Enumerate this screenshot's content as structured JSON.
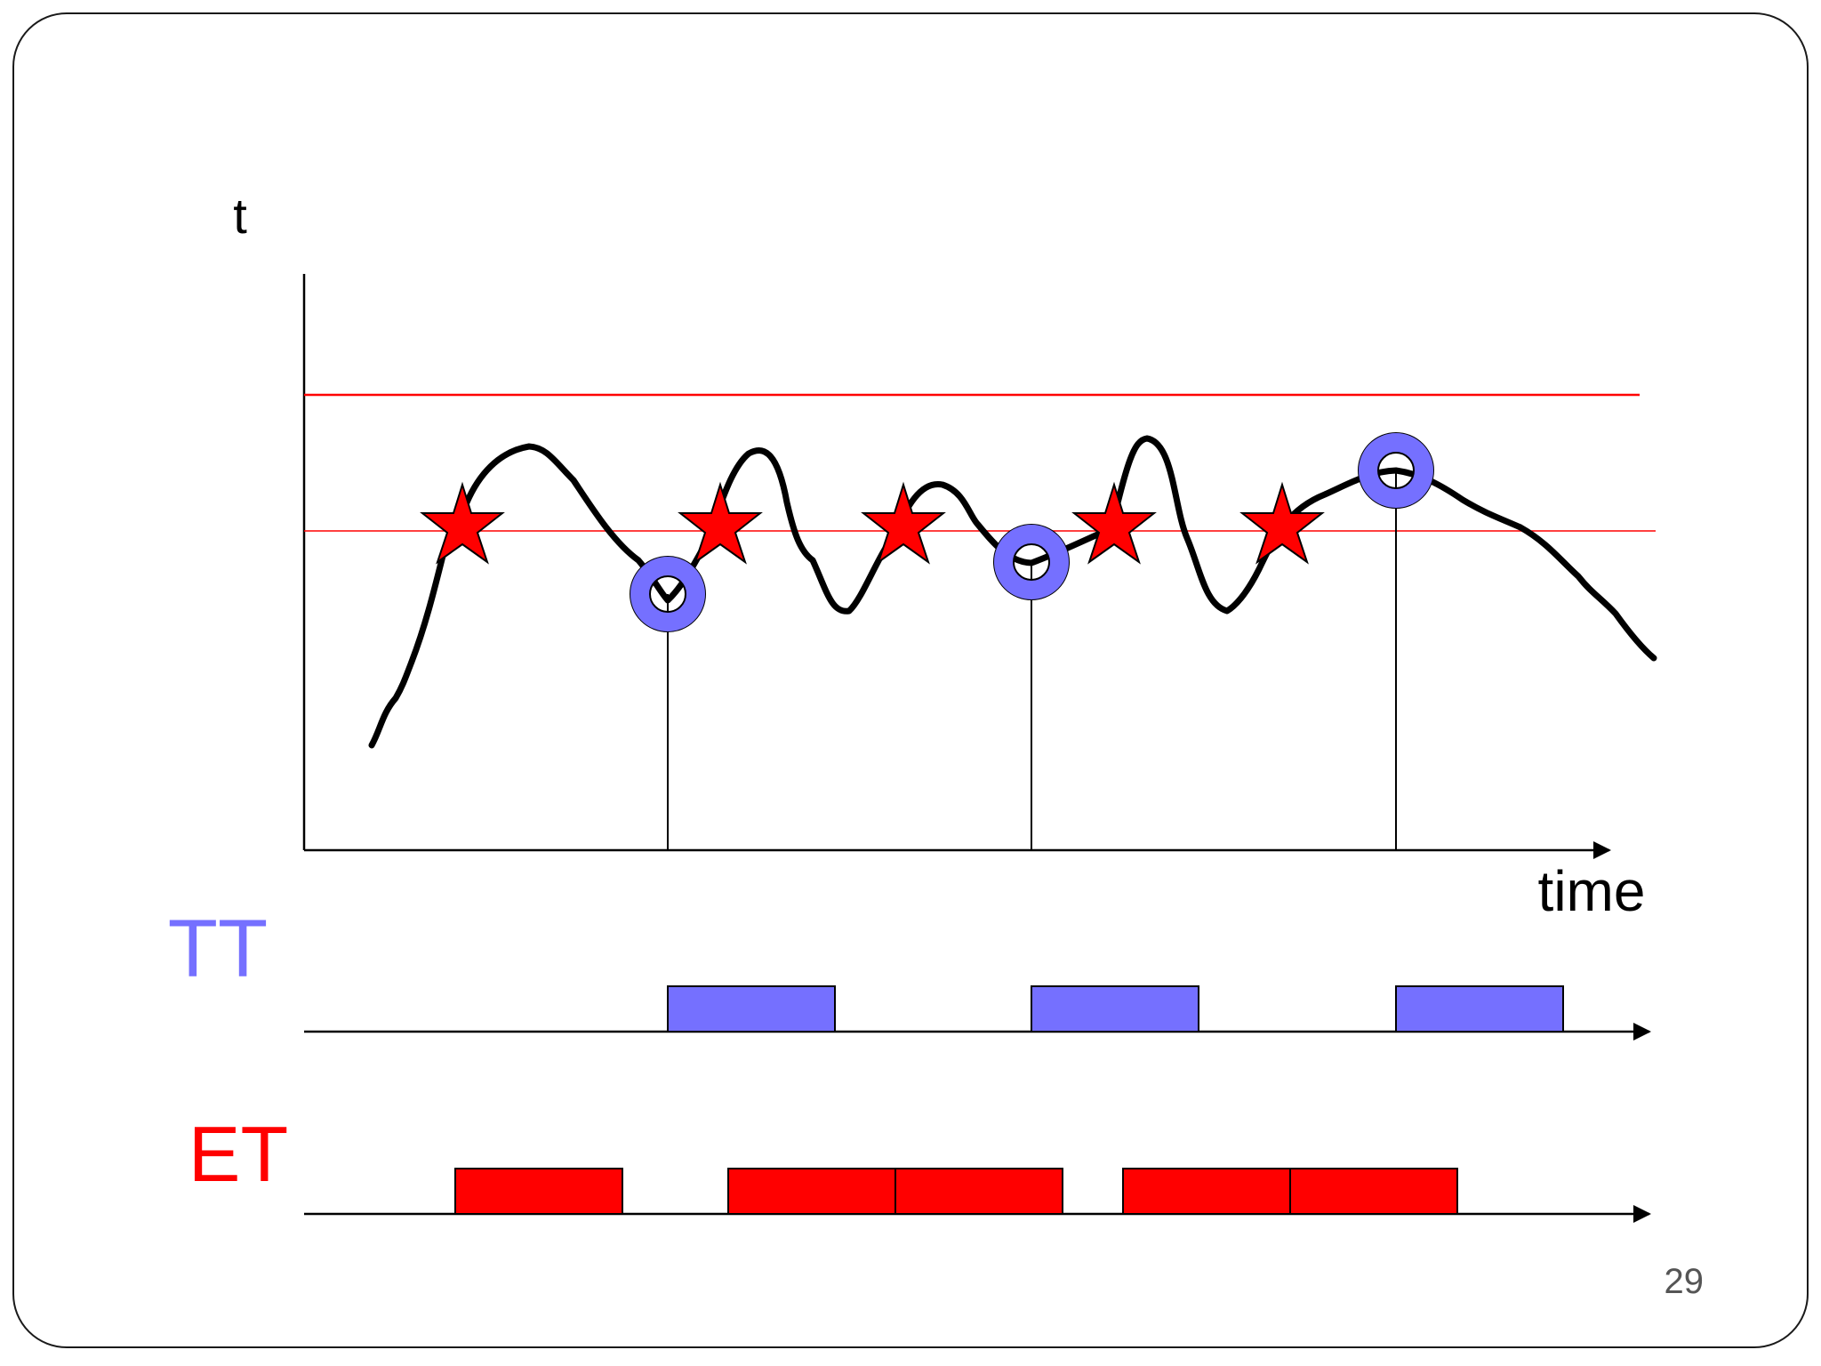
{
  "slide": {
    "page_number": "29"
  },
  "labels": {
    "y_axis": "t",
    "x_axis": "time",
    "tt": "TT",
    "et": "ET"
  },
  "colors": {
    "tt": "#7570ff",
    "et": "#ff0000",
    "curve": "#000000",
    "threshold": "#ff0000",
    "axis": "#000000",
    "frame": "#000000"
  }
}
